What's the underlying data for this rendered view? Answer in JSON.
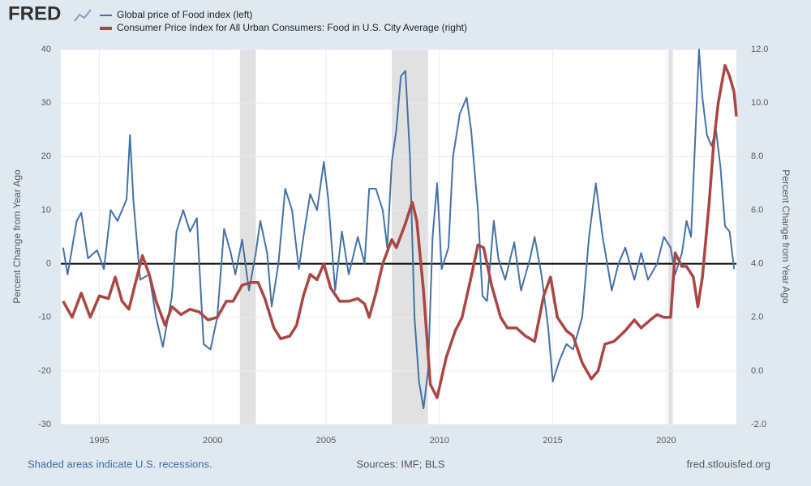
{
  "chart_data": {
    "type": "line",
    "logo": "FRED",
    "note": "Shaded areas indicate U.S. recessions.",
    "source": "Sources: IMF; BLS",
    "site": "fred.stlouisfed.org",
    "ylabel": "Percent Change from Year Ago",
    "y2label": "Percent Change from Year Ago",
    "xlim": [
      1993.3,
      2023.1
    ],
    "xticks": [
      1995,
      2000,
      2005,
      2010,
      2015,
      2020
    ],
    "ylim": [
      -30,
      40
    ],
    "yticks": [
      -30,
      -20,
      -10,
      0,
      10,
      20,
      30,
      40
    ],
    "y2lim": [
      -2,
      12
    ],
    "y2ticks": [
      {
        "value": -2,
        "label": "-2.0"
      },
      {
        "value": 0,
        "label": "0.0"
      },
      {
        "value": 2,
        "label": "2.0"
      },
      {
        "value": 4,
        "label": "4.0"
      },
      {
        "value": 6,
        "label": "6.0"
      },
      {
        "value": 8,
        "label": "8.0"
      },
      {
        "value": 10,
        "label": "10.0"
      },
      {
        "value": 12,
        "label": "12.0"
      }
    ],
    "grid": true,
    "hline": 0,
    "recessions": [
      [
        2001.2,
        2001.9
      ],
      [
        2007.9,
        2009.5
      ],
      [
        2020.1,
        2020.3
      ]
    ],
    "series": [
      {
        "name": "Global price of Food index (left)",
        "color": "#4572a7",
        "axis": "y",
        "x": [
          1993.4,
          1993.6,
          1994.0,
          1994.2,
          1994.5,
          1994.9,
          1995.2,
          1995.5,
          1995.8,
          1996.2,
          1996.35,
          1996.5,
          1996.8,
          1997.2,
          1997.5,
          1997.8,
          1998.2,
          1998.4,
          1998.7,
          1999.0,
          1999.3,
          1999.6,
          1999.9,
          2000.2,
          2000.5,
          2000.8,
          2001.0,
          2001.3,
          2001.6,
          2001.9,
          2002.1,
          2002.4,
          2002.6,
          2002.9,
          2003.2,
          2003.5,
          2003.8,
          2004.0,
          2004.3,
          2004.6,
          2004.9,
          2005.1,
          2005.4,
          2005.7,
          2006.0,
          2006.4,
          2006.7,
          2006.9,
          2007.2,
          2007.5,
          2007.7,
          2007.9,
          2008.1,
          2008.3,
          2008.5,
          2008.7,
          2008.9,
          2009.1,
          2009.3,
          2009.5,
          2009.7,
          2009.9,
          2010.1,
          2010.4,
          2010.6,
          2010.9,
          2011.2,
          2011.4,
          2011.7,
          2011.9,
          2012.1,
          2012.4,
          2012.6,
          2012.9,
          2013.3,
          2013.6,
          2014.0,
          2014.2,
          2014.5,
          2014.8,
          2015.0,
          2015.3,
          2015.6,
          2015.9,
          2016.3,
          2016.6,
          2016.9,
          2017.2,
          2017.6,
          2017.9,
          2018.2,
          2018.6,
          2018.9,
          2019.2,
          2019.6,
          2019.9,
          2020.2,
          2020.4,
          2020.7,
          2020.9,
          2021.1,
          2021.3,
          2021.45,
          2021.6,
          2021.8,
          2022.0,
          2022.2,
          2022.4,
          2022.6,
          2022.8,
          2023.0
        ],
        "values": [
          3,
          -2,
          8,
          9.5,
          1,
          2.5,
          -1,
          10,
          8,
          12,
          24,
          12,
          -3,
          -2,
          -10,
          -15.5,
          -6,
          6,
          10,
          6,
          8.5,
          -15,
          -16,
          -10,
          6.5,
          2,
          -2,
          4.5,
          -5,
          2,
          8,
          2,
          -8,
          0,
          14,
          10,
          -1,
          5,
          13,
          10,
          19,
          12,
          -5,
          6,
          -2,
          5,
          0,
          14,
          14,
          10,
          3,
          19,
          25,
          35,
          36,
          20,
          -10,
          -22,
          -27,
          -20,
          5,
          15,
          -1,
          3,
          20,
          28,
          31,
          25,
          10,
          -6,
          -7,
          8,
          1,
          -3,
          4,
          -5,
          1,
          5,
          -2,
          -12,
          -22,
          -18,
          -15,
          -16,
          -10,
          5,
          15,
          5,
          -5,
          0,
          3,
          -3,
          2,
          -3,
          0,
          5,
          3,
          -2,
          2,
          8,
          5,
          25,
          40,
          31,
          24,
          22,
          25,
          18,
          7,
          6,
          -1
        ]
      },
      {
        "name": "Consumer Price Index for All Urban Consumers: Food in U.S. City Average (right)",
        "color": "#aa4643",
        "axis": "y2",
        "x": [
          1993.4,
          1993.8,
          1994.2,
          1994.6,
          1995.0,
          1995.4,
          1995.7,
          1996.0,
          1996.3,
          1996.6,
          1996.9,
          1997.2,
          1997.5,
          1997.9,
          1998.2,
          1998.6,
          1999.0,
          1999.4,
          1999.8,
          2000.2,
          2000.6,
          2000.9,
          2001.3,
          2001.7,
          2002.0,
          2002.3,
          2002.7,
          2003.0,
          2003.4,
          2003.7,
          2004.0,
          2004.3,
          2004.6,
          2004.9,
          2005.2,
          2005.6,
          2006.0,
          2006.4,
          2006.7,
          2006.9,
          2007.2,
          2007.5,
          2007.9,
          2008.1,
          2008.5,
          2008.8,
          2009.0,
          2009.3,
          2009.6,
          2009.9,
          2010.3,
          2010.7,
          2011.0,
          2011.4,
          2011.7,
          2011.95,
          2012.3,
          2012.7,
          2013.0,
          2013.4,
          2013.8,
          2014.2,
          2014.6,
          2014.9,
          2015.2,
          2015.6,
          2015.9,
          2016.3,
          2016.7,
          2017.0,
          2017.3,
          2017.7,
          2018.2,
          2018.6,
          2018.9,
          2019.3,
          2019.6,
          2019.9,
          2020.2,
          2020.4,
          2020.7,
          2020.9,
          2021.2,
          2021.4,
          2021.6,
          2021.9,
          2022.1,
          2022.3,
          2022.6,
          2022.8,
          2023.0,
          2023.1
        ],
        "values": [
          2.6,
          2.0,
          2.9,
          2.0,
          2.8,
          2.7,
          3.5,
          2.6,
          2.3,
          3.3,
          4.3,
          3.6,
          2.6,
          1.7,
          2.4,
          2.1,
          2.3,
          2.2,
          1.9,
          2.0,
          2.6,
          2.6,
          3.2,
          3.3,
          3.3,
          2.7,
          1.6,
          1.2,
          1.3,
          1.7,
          2.8,
          3.6,
          3.4,
          4.0,
          3.1,
          2.6,
          2.6,
          2.7,
          2.5,
          2.0,
          2.9,
          4.0,
          4.9,
          4.6,
          5.5,
          6.3,
          5.6,
          3.0,
          -0.5,
          -1.0,
          0.5,
          1.5,
          2.0,
          3.5,
          4.7,
          4.6,
          3.2,
          2.0,
          1.6,
          1.6,
          1.3,
          1.1,
          2.8,
          3.5,
          2.0,
          1.5,
          1.3,
          0.3,
          -0.3,
          0.0,
          1.0,
          1.1,
          1.5,
          1.9,
          1.6,
          1.9,
          2.1,
          2.0,
          2.0,
          4.4,
          3.9,
          3.9,
          3.5,
          2.4,
          3.5,
          6.3,
          8.5,
          10.0,
          11.4,
          11.0,
          10.4,
          9.5
        ]
      }
    ]
  }
}
